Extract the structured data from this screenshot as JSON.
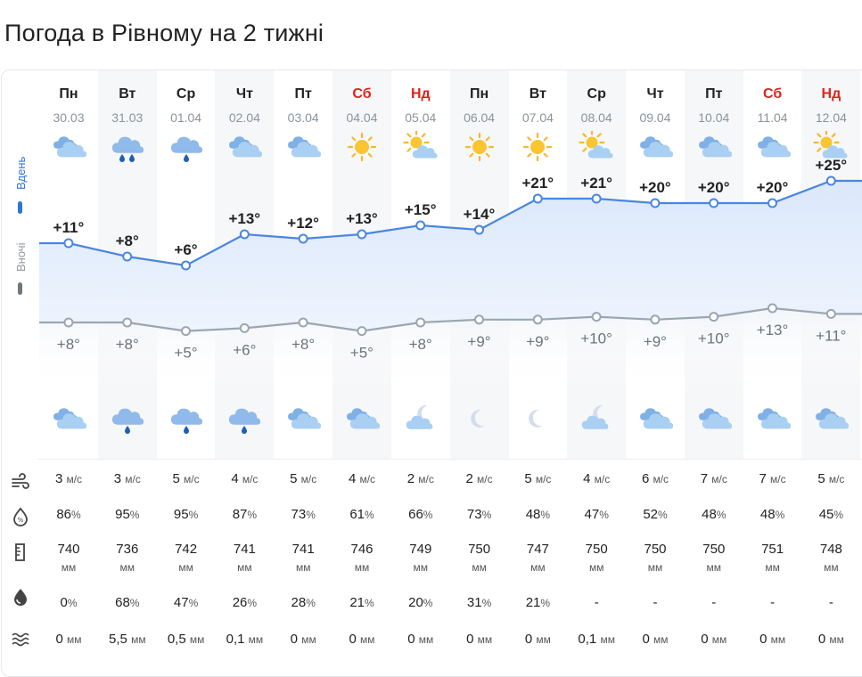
{
  "title": "Погода в Рівному на 2 тижні",
  "side": {
    "day": "Вдень",
    "night": "Вночі"
  },
  "colors": {
    "day_line": "#4a86e0",
    "night_line": "#9aa6b2",
    "weekend": "#e0231c"
  },
  "units": {
    "wind": "м/с",
    "pressure": "мм",
    "precip": "мм"
  },
  "days": [
    {
      "dow": "Пн",
      "date": "30.03",
      "weekend": false,
      "day_icon": "cloudy-icon",
      "night_icon": "cloudy-icon",
      "t_day": "+11°",
      "t_night": "+8°",
      "v_day": 11,
      "v_night": 8,
      "wind": "3",
      "humidity": "86",
      "pressure": "740",
      "precip_prob": "0",
      "precip": "0"
    },
    {
      "dow": "Вт",
      "date": "31.03",
      "weekend": false,
      "day_icon": "cloud-rain-heavy-icon",
      "night_icon": "cloud-rain-icon",
      "t_day": "+8°",
      "t_night": "+8°",
      "v_day": 8,
      "v_night": 8,
      "wind": "3",
      "humidity": "95",
      "pressure": "736",
      "precip_prob": "68",
      "precip": "5,5"
    },
    {
      "dow": "Ср",
      "date": "01.04",
      "weekend": false,
      "day_icon": "cloud-rain-icon",
      "night_icon": "cloud-rain-icon",
      "t_day": "+6°",
      "t_night": "+5°",
      "v_day": 6,
      "v_night": 5,
      "wind": "5",
      "humidity": "95",
      "pressure": "742",
      "precip_prob": "47",
      "precip": "0,5"
    },
    {
      "dow": "Чт",
      "date": "02.04",
      "weekend": false,
      "day_icon": "cloudy-icon",
      "night_icon": "cloud-rain-icon",
      "t_day": "+13°",
      "t_night": "+6°",
      "v_day": 13,
      "v_night": 6,
      "wind": "4",
      "humidity": "87",
      "pressure": "741",
      "precip_prob": "26",
      "precip": "0,1"
    },
    {
      "dow": "Пт",
      "date": "03.04",
      "weekend": false,
      "day_icon": "cloudy-icon",
      "night_icon": "cloudy-icon",
      "t_day": "+12°",
      "t_night": "+8°",
      "v_day": 12,
      "v_night": 8,
      "wind": "5",
      "humidity": "73",
      "pressure": "741",
      "precip_prob": "28",
      "precip": "0"
    },
    {
      "dow": "Сб",
      "date": "04.04",
      "weekend": true,
      "day_icon": "sun-icon",
      "night_icon": "cloudy-icon",
      "t_day": "+13°",
      "t_night": "+5°",
      "v_day": 13,
      "v_night": 5,
      "wind": "4",
      "humidity": "61",
      "pressure": "746",
      "precip_prob": "21",
      "precip": "0"
    },
    {
      "dow": "Нд",
      "date": "05.04",
      "weekend": true,
      "day_icon": "sun-cloud-icon",
      "night_icon": "moon-cloud-icon",
      "t_day": "+15°",
      "t_night": "+8°",
      "v_day": 15,
      "v_night": 8,
      "wind": "2",
      "humidity": "66",
      "pressure": "749",
      "precip_prob": "20",
      "precip": "0"
    },
    {
      "dow": "Пн",
      "date": "06.04",
      "weekend": false,
      "day_icon": "sun-icon",
      "night_icon": "moon-icon",
      "t_day": "+14°",
      "t_night": "+9°",
      "v_day": 14,
      "v_night": 9,
      "wind": "2",
      "humidity": "73",
      "pressure": "750",
      "precip_prob": "31",
      "precip": "0"
    },
    {
      "dow": "Вт",
      "date": "07.04",
      "weekend": false,
      "day_icon": "sun-icon",
      "night_icon": "moon-icon",
      "t_day": "+21°",
      "t_night": "+9°",
      "v_day": 21,
      "v_night": 9,
      "wind": "5",
      "humidity": "48",
      "pressure": "747",
      "precip_prob": "21",
      "precip": "0"
    },
    {
      "dow": "Ср",
      "date": "08.04",
      "weekend": false,
      "day_icon": "sun-cloud-icon",
      "night_icon": "moon-cloud-icon",
      "t_day": "+21°",
      "t_night": "+10°",
      "v_day": 21,
      "v_night": 10,
      "wind": "4",
      "humidity": "47",
      "pressure": "750",
      "precip_prob": "-",
      "precip": "0,1"
    },
    {
      "dow": "Чт",
      "date": "09.04",
      "weekend": false,
      "day_icon": "cloudy-icon",
      "night_icon": "cloudy-icon",
      "t_day": "+20°",
      "t_night": "+9°",
      "v_day": 20,
      "v_night": 9,
      "wind": "6",
      "humidity": "52",
      "pressure": "750",
      "precip_prob": "-",
      "precip": "0"
    },
    {
      "dow": "Пт",
      "date": "10.04",
      "weekend": false,
      "day_icon": "cloudy-icon",
      "night_icon": "cloudy-icon",
      "t_day": "+20°",
      "t_night": "+10°",
      "v_day": 20,
      "v_night": 10,
      "wind": "7",
      "humidity": "48",
      "pressure": "750",
      "precip_prob": "-",
      "precip": "0"
    },
    {
      "dow": "Сб",
      "date": "11.04",
      "weekend": true,
      "day_icon": "cloudy-icon",
      "night_icon": "cloudy-icon",
      "t_day": "+20°",
      "t_night": "+13°",
      "v_day": 20,
      "v_night": 13,
      "wind": "7",
      "humidity": "48",
      "pressure": "751",
      "precip_prob": "-",
      "precip": "0"
    },
    {
      "dow": "Нд",
      "date": "12.04",
      "weekend": true,
      "day_icon": "sun-cloud-icon",
      "night_icon": "cloudy-icon",
      "t_day": "+25°",
      "t_night": "+11°",
      "v_day": 25,
      "v_night": 11,
      "wind": "5",
      "humidity": "45",
      "pressure": "748",
      "precip_prob": "-",
      "precip": "0"
    }
  ],
  "row_icons": [
    "wind-icon",
    "humidity-icon",
    "pressure-icon",
    "precip-probability-icon",
    "precipitation-icon"
  ]
}
